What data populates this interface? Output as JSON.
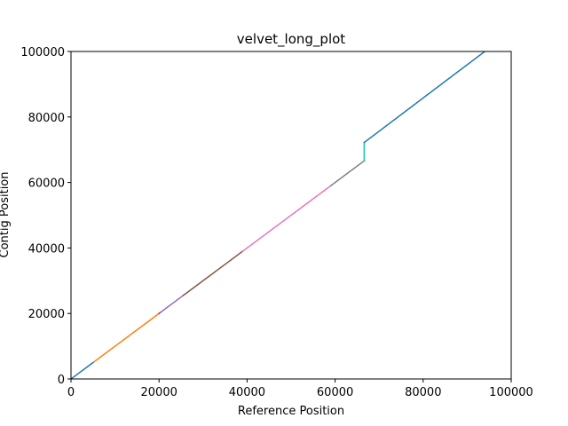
{
  "chart_data": {
    "type": "line",
    "title": "velvet_long_plot",
    "xlabel": "Reference Position",
    "ylabel": "Contig Position",
    "xlim": [
      0,
      100000
    ],
    "ylim": [
      0,
      100000
    ],
    "xticks": [
      0,
      20000,
      40000,
      60000,
      80000,
      100000
    ],
    "yticks": [
      0,
      20000,
      40000,
      60000,
      80000,
      100000
    ],
    "xtick_labels": [
      "0",
      "20000",
      "40000",
      "60000",
      "80000",
      "100000"
    ],
    "ytick_labels": [
      "0",
      "20000",
      "40000",
      "60000",
      "80000",
      "100000"
    ],
    "grid": false,
    "legend": "none",
    "series": [
      {
        "color": "#1f77b4",
        "x": [
          0,
          5200
        ],
        "y": [
          0,
          5200
        ]
      },
      {
        "color": "#ff7f0e",
        "x": [
          5200,
          20000
        ],
        "y": [
          5200,
          20000
        ]
      },
      {
        "color": "#d62728",
        "x": [
          20000,
          20300
        ],
        "y": [
          20000,
          20300
        ]
      },
      {
        "color": "#9467bd",
        "x": [
          20300,
          25500
        ],
        "y": [
          20300,
          25500
        ]
      },
      {
        "color": "#8c564b",
        "x": [
          25500,
          39000
        ],
        "y": [
          25500,
          39000
        ]
      },
      {
        "color": "#e377c2",
        "x": [
          39000,
          59000
        ],
        "y": [
          39000,
          59000
        ]
      },
      {
        "color": "#7f7f7f",
        "x": [
          59000,
          66600
        ],
        "y": [
          59000,
          66600
        ]
      },
      {
        "color": "#bcbd22",
        "x": [
          66600,
          66700
        ],
        "y": [
          66600,
          66700
        ]
      },
      {
        "color": "#17becf",
        "x": [
          66600,
          66600
        ],
        "y": [
          66600,
          72200
        ]
      },
      {
        "color": "#1f77b4",
        "x": [
          66600,
          94000
        ],
        "y": [
          72200,
          100000
        ]
      }
    ]
  }
}
